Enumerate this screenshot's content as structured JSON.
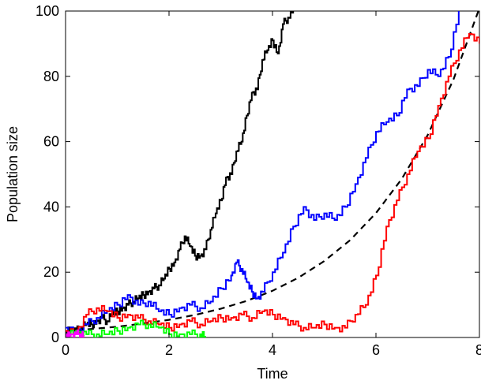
{
  "chart_data": {
    "type": "line",
    "title": "",
    "xlabel": "Time",
    "ylabel": "Population size",
    "xlim": [
      0,
      8
    ],
    "ylim": [
      0,
      100
    ],
    "xticks": [
      0,
      2,
      4,
      6,
      8
    ],
    "yticks": [
      0,
      20,
      40,
      60,
      80,
      100
    ],
    "grid": false,
    "legend": "none",
    "series": [
      {
        "color": "#000000",
        "style": "dashed",
        "x": [
          0,
          0.5,
          1,
          1.5,
          2,
          2.5,
          3,
          3.5,
          4,
          4.5,
          5,
          5.5,
          6,
          6.5,
          7,
          7.5,
          8
        ],
        "y": [
          2.0,
          2.6,
          3.3,
          4.3,
          5.4,
          6.9,
          8.8,
          11.2,
          14.3,
          18.3,
          23.4,
          29.8,
          38.1,
          48.6,
          62.0,
          79.1,
          100.9
        ]
      },
      {
        "color": "#000000",
        "style": "solid",
        "x": [
          0,
          0.1,
          0.2,
          0.3,
          0.4,
          0.5,
          0.6,
          0.7,
          0.8,
          0.9,
          1.0,
          1.1,
          1.2,
          1.3,
          1.4,
          1.5,
          1.6,
          1.7,
          1.8,
          1.9,
          2.0,
          2.1,
          2.2,
          2.3,
          2.4,
          2.5,
          2.6,
          2.7,
          2.8,
          2.9,
          3.0,
          3.1,
          3.2,
          3.3,
          3.4,
          3.5,
          3.6,
          3.7,
          3.8,
          3.9,
          4.0,
          4.1,
          4.2,
          4.3,
          4.4
        ],
        "y": [
          2,
          3,
          2,
          3,
          4,
          4,
          5,
          6,
          5,
          7,
          8,
          9,
          10,
          11,
          12,
          13,
          14,
          15,
          16,
          18,
          21,
          23,
          27,
          31,
          28,
          25,
          25,
          27,
          33,
          38,
          42,
          49,
          50,
          57,
          60,
          68,
          75,
          76,
          85,
          88,
          91,
          87,
          96,
          98,
          100
        ]
      },
      {
        "color": "#0000ff",
        "style": "solid",
        "x": [
          0,
          0.2,
          0.4,
          0.6,
          0.8,
          1.0,
          1.2,
          1.4,
          1.6,
          1.8,
          2.0,
          2.2,
          2.4,
          2.6,
          2.8,
          3.0,
          3.2,
          3.3,
          3.4,
          3.5,
          3.6,
          3.7,
          3.8,
          4.0,
          4.2,
          4.4,
          4.6,
          4.8,
          5.0,
          5.2,
          5.4,
          5.6,
          5.8,
          6.0,
          6.2,
          6.4,
          6.6,
          6.8,
          7.0,
          7.2,
          7.4,
          7.6
        ],
        "y": [
          3,
          2,
          4,
          6,
          8,
          10,
          13,
          10,
          11,
          8,
          7,
          9,
          10,
          9,
          11,
          15,
          19,
          23,
          21,
          17,
          14,
          12,
          14,
          20,
          26,
          34,
          40,
          36,
          38,
          36,
          40,
          47,
          55,
          63,
          66,
          68,
          76,
          77,
          82,
          80,
          86,
          100
        ]
      },
      {
        "color": "#ff0000",
        "style": "solid",
        "x": [
          0,
          0.2,
          0.4,
          0.6,
          0.8,
          1.0,
          1.2,
          1.4,
          1.6,
          1.8,
          2.0,
          2.2,
          2.4,
          2.6,
          2.8,
          3.0,
          3.2,
          3.4,
          3.6,
          3.8,
          4.0,
          4.2,
          4.4,
          4.6,
          4.8,
          5.0,
          5.2,
          5.4,
          5.6,
          5.8,
          6.0,
          6.2,
          6.4,
          6.6,
          6.8,
          7.0,
          7.2,
          7.4,
          7.6,
          7.8,
          8.0
        ],
        "y": [
          2,
          2,
          7,
          9,
          8,
          6,
          7,
          6,
          5,
          4,
          3,
          4,
          5,
          4,
          5,
          6,
          6,
          7,
          6,
          8,
          7,
          6,
          4,
          3,
          3,
          4,
          3,
          3,
          7,
          10,
          19,
          34,
          42,
          50,
          57,
          61,
          71,
          80,
          88,
          93,
          90
        ]
      },
      {
        "color": "#00ff00",
        "style": "solid",
        "x": [
          0,
          0.2,
          0.4,
          0.6,
          0.8,
          1.0,
          1.2,
          1.4,
          1.6,
          1.8,
          2.0,
          2.2,
          2.4,
          2.6,
          2.7
        ],
        "y": [
          1,
          2,
          1,
          1,
          1,
          2,
          3,
          4,
          4,
          3,
          1,
          1,
          1,
          1,
          0
        ]
      },
      {
        "color": "#ff00ff",
        "style": "solid",
        "x": [
          0,
          0.1,
          0.2,
          0.3,
          0.35
        ],
        "y": [
          1,
          1,
          1,
          1,
          0
        ]
      }
    ]
  }
}
